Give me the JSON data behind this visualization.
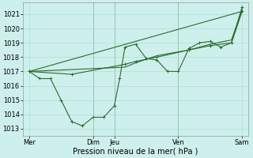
{
  "xlabel": "Pression niveau de la mer( hPa )",
  "background_color": "#cdf0ec",
  "grid_color": "#b0ddd8",
  "line_color": "#2d6a2d",
  "vline_color": "#5a8a5a",
  "ylim": [
    1012.5,
    1021.8
  ],
  "yticks": [
    1013,
    1014,
    1015,
    1016,
    1017,
    1018,
    1019,
    1020,
    1021
  ],
  "x_day_labels": [
    "Mer",
    "",
    "Dim",
    "Jeu",
    "",
    "Ven",
    "",
    "Sam"
  ],
  "x_day_positions": [
    0,
    1.5,
    3.0,
    4.0,
    5.5,
    7.0,
    8.5,
    10.0
  ],
  "x_vlines": [
    3.0,
    4.0,
    7.0
  ],
  "xlim": [
    -0.3,
    10.3
  ],
  "line1_x": [
    0,
    0.5,
    1.0,
    1.5,
    2.0,
    2.5,
    3.0,
    3.5,
    4.0,
    4.25,
    4.5,
    5.0,
    5.5,
    6.0,
    6.5,
    7.0,
    7.5,
    8.0,
    8.5,
    9.0,
    9.5,
    10.0
  ],
  "line1_y": [
    1017.0,
    1016.5,
    1016.5,
    1015.0,
    1013.5,
    1013.2,
    1013.8,
    1013.8,
    1014.6,
    1016.5,
    1018.7,
    1018.9,
    1017.9,
    1017.8,
    1017.0,
    1017.0,
    1018.6,
    1019.0,
    1019.1,
    1018.7,
    1019.0,
    1021.5
  ],
  "line2_x": [
    0,
    2.0,
    4.5,
    5.0,
    6.0,
    7.5,
    8.5,
    9.5,
    10.0
  ],
  "line2_y": [
    1017.0,
    1016.8,
    1017.5,
    1017.7,
    1018.0,
    1018.5,
    1018.8,
    1019.0,
    1021.2
  ],
  "line3_x": [
    0,
    10.0
  ],
  "line3_y": [
    1017.0,
    1021.2
  ],
  "line4_x": [
    0,
    4.5,
    5.0,
    6.0,
    7.5,
    8.5,
    9.5,
    10.0
  ],
  "line4_y": [
    1017.0,
    1017.3,
    1017.6,
    1018.1,
    1018.5,
    1018.9,
    1019.2,
    1021.3
  ],
  "font_size_label": 7,
  "font_size_tick": 6,
  "marker_size": 2.5,
  "lw": 0.8
}
